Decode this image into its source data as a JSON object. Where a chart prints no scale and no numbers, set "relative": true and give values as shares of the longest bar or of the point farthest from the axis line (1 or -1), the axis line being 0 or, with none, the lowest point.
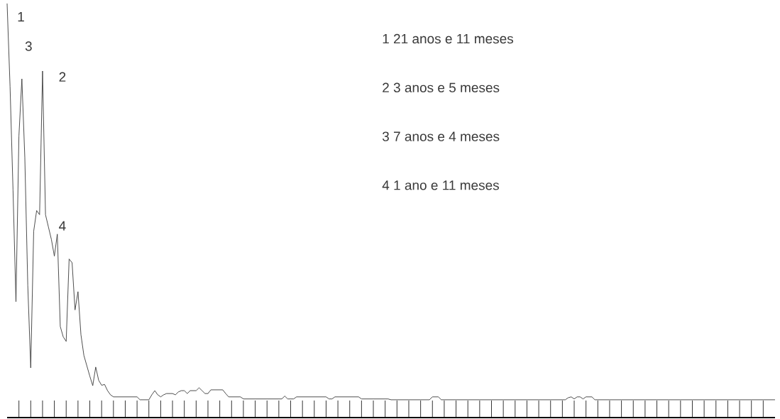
{
  "chart_data": {
    "type": "line",
    "relative": true,
    "color": "#3a3a3a",
    "categories": [
      null,
      null,
      null,
      null,
      null,
      null,
      null,
      null,
      null,
      null,
      null,
      null,
      null,
      null,
      null,
      null,
      null,
      null,
      null,
      null,
      null,
      null,
      null,
      null,
      null,
      null,
      null,
      null,
      null,
      null,
      null,
      null,
      null,
      null,
      null,
      null,
      null,
      null,
      null,
      null,
      null,
      null,
      null,
      null,
      null,
      null,
      null,
      null,
      null,
      null,
      null,
      null,
      null,
      null,
      null,
      null,
      null,
      null,
      null,
      null,
      null,
      null,
      null,
      null,
      null,
      null,
      null,
      null,
      null,
      null,
      null,
      null,
      null,
      null,
      null,
      null,
      null,
      null,
      null,
      null,
      null,
      null,
      null,
      null,
      null,
      null,
      null,
      null,
      null,
      null,
      null,
      null,
      null,
      null,
      null,
      null,
      null,
      null,
      null,
      null,
      null,
      null,
      null,
      null,
      null,
      null,
      null,
      null,
      null,
      null,
      null,
      null,
      null,
      null,
      null,
      null,
      null,
      null,
      null,
      null,
      null,
      null,
      null,
      null,
      null,
      null,
      null,
      null,
      null,
      null,
      null,
      null,
      null,
      null,
      null,
      null,
      null,
      null,
      null,
      null,
      null,
      null,
      null,
      null,
      null,
      null,
      null,
      null,
      null,
      null,
      null,
      null,
      null,
      null,
      null,
      null,
      null,
      null,
      null,
      null,
      null,
      null,
      null,
      null,
      null,
      null,
      null,
      null,
      null,
      null,
      null,
      null,
      null,
      null,
      null,
      null,
      null,
      null,
      null,
      null,
      null,
      null,
      null,
      null,
      null,
      null,
      null,
      null,
      null,
      null,
      null,
      null,
      null,
      null,
      null,
      null,
      null,
      null,
      null,
      null,
      null,
      null,
      null,
      null,
      null,
      null,
      null,
      null,
      null,
      null,
      null,
      null,
      null,
      null,
      null,
      null,
      null,
      null,
      null,
      null,
      null,
      null,
      null,
      null,
      null,
      null,
      null,
      null,
      null,
      null,
      null,
      null,
      null,
      null,
      null,
      null,
      null,
      null,
      null,
      null,
      null,
      null,
      null,
      null,
      null,
      null,
      null,
      null,
      null,
      null,
      null,
      null,
      null,
      null,
      null,
      null,
      null,
      null,
      null,
      null,
      null
    ],
    "values": [
      1.0,
      0.8,
      0.55,
      0.28,
      0.68,
      0.818,
      0.628,
      0.32,
      0.12,
      0.45,
      0.5,
      0.49,
      0.837,
      0.49,
      0.46,
      0.43,
      0.39,
      0.443,
      0.22,
      0.195,
      0.184,
      0.383,
      0.374,
      0.26,
      0.304,
      0.2,
      0.15,
      0.125,
      0.1,
      0.077,
      0.122,
      0.09,
      0.078,
      0.08,
      0.065,
      0.055,
      0.05,
      0.05,
      0.05,
      0.05,
      0.05,
      0.05,
      0.05,
      0.05,
      0.05,
      0.043,
      0.043,
      0.043,
      0.043,
      0.055,
      0.065,
      0.055,
      0.05,
      0.055,
      0.058,
      0.058,
      0.058,
      0.055,
      0.062,
      0.065,
      0.065,
      0.058,
      0.065,
      0.065,
      0.065,
      0.072,
      0.065,
      0.058,
      0.058,
      0.067,
      0.067,
      0.067,
      0.067,
      0.067,
      0.058,
      0.05,
      0.05,
      0.05,
      0.05,
      0.05,
      0.045,
      0.045,
      0.045,
      0.045,
      0.045,
      0.045,
      0.045,
      0.045,
      0.045,
      0.045,
      0.045,
      0.045,
      0.045,
      0.045,
      0.052,
      0.045,
      0.045,
      0.045,
      0.05,
      0.05,
      0.05,
      0.05,
      0.05,
      0.05,
      0.05,
      0.05,
      0.05,
      0.05,
      0.05,
      0.045,
      0.045,
      0.05,
      0.05,
      0.05,
      0.05,
      0.05,
      0.05,
      0.05,
      0.05,
      0.05,
      0.045,
      0.045,
      0.045,
      0.045,
      0.045,
      0.045,
      0.045,
      0.045,
      0.045,
      0.045,
      0.043,
      0.043,
      0.043,
      0.043,
      0.043,
      0.043,
      0.043,
      0.043,
      0.043,
      0.043,
      0.043,
      0.043,
      0.043,
      0.043,
      0.05,
      0.05,
      0.05,
      0.043,
      0.043,
      0.043,
      0.043,
      0.043,
      0.043,
      0.043,
      0.043,
      0.043,
      0.043,
      0.043,
      0.043,
      0.043,
      0.043,
      0.043,
      0.043,
      0.043,
      0.043,
      0.043,
      0.043,
      0.043,
      0.043,
      0.043,
      0.043,
      0.043,
      0.043,
      0.043,
      0.043,
      0.043,
      0.043,
      0.043,
      0.043,
      0.043,
      0.043,
      0.043,
      0.043,
      0.043,
      0.043,
      0.043,
      0.043,
      0.043,
      0.043,
      0.043,
      0.048,
      0.05,
      0.045,
      0.05,
      0.05,
      0.045,
      0.05,
      0.05,
      0.05,
      0.043,
      0.043,
      0.043,
      0.043,
      0.043,
      0.043,
      0.043,
      0.043,
      0.043,
      0.043,
      0.043,
      0.043,
      0.043,
      0.043,
      0.043,
      0.043,
      0.043,
      0.043,
      0.043,
      0.043,
      0.043,
      0.043,
      0.043,
      0.043,
      0.043,
      0.043,
      0.043,
      0.043,
      0.043,
      0.043,
      0.043,
      0.043,
      0.043,
      0.043,
      0.043,
      0.043,
      0.043,
      0.043,
      0.043,
      0.043,
      0.043,
      0.043,
      0.043,
      0.043,
      0.043,
      0.043,
      0.043,
      0.043,
      0.043,
      0.043,
      0.043,
      0.043,
      0.043,
      0.043,
      0.043,
      0.043,
      0.043,
      0.043,
      0.043,
      0.043,
      0.043,
      0.043
    ],
    "annotations": [
      "1",
      "3",
      "2",
      "4",
      "1 21 anos e 11 meses",
      "2 3 anos e 5 meses",
      "3 7 anos e 4 meses",
      "4 1 ano e 11 meses"
    ]
  }
}
